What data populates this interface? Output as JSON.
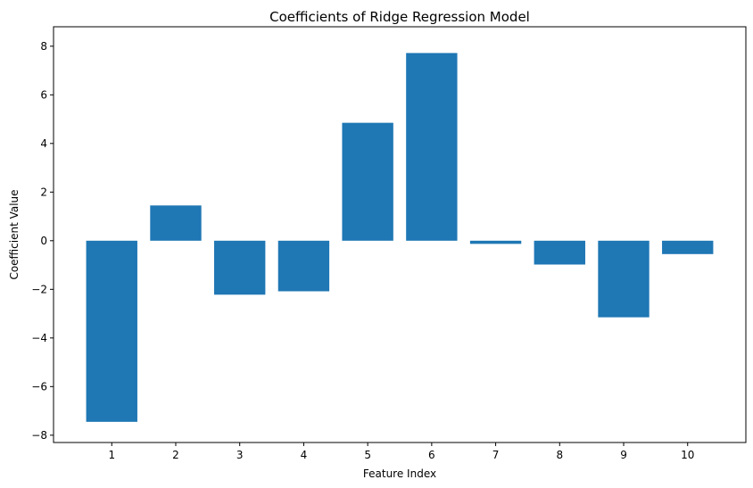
{
  "chart_data": {
    "type": "bar",
    "title": "Coefficients of Ridge Regression Model",
    "xlabel": "Feature Index",
    "ylabel": "Coefficient Value",
    "categories": [
      "1",
      "2",
      "3",
      "4",
      "5",
      "6",
      "7",
      "8",
      "9",
      "10"
    ],
    "values": [
      -7.45,
      1.45,
      -2.22,
      -2.08,
      4.85,
      7.72,
      -0.13,
      -0.98,
      -3.15,
      -0.55
    ],
    "ylim": [
      -8.3,
      8.8
    ],
    "yticks": [
      -8,
      -6,
      -4,
      -2,
      0,
      2,
      4,
      6,
      8
    ],
    "ytick_labels": [
      "−8",
      "−6",
      "−4",
      "−2",
      "0",
      "2",
      "4",
      "6",
      "8"
    ],
    "grid": false,
    "bar_color": "#1f77b4"
  }
}
